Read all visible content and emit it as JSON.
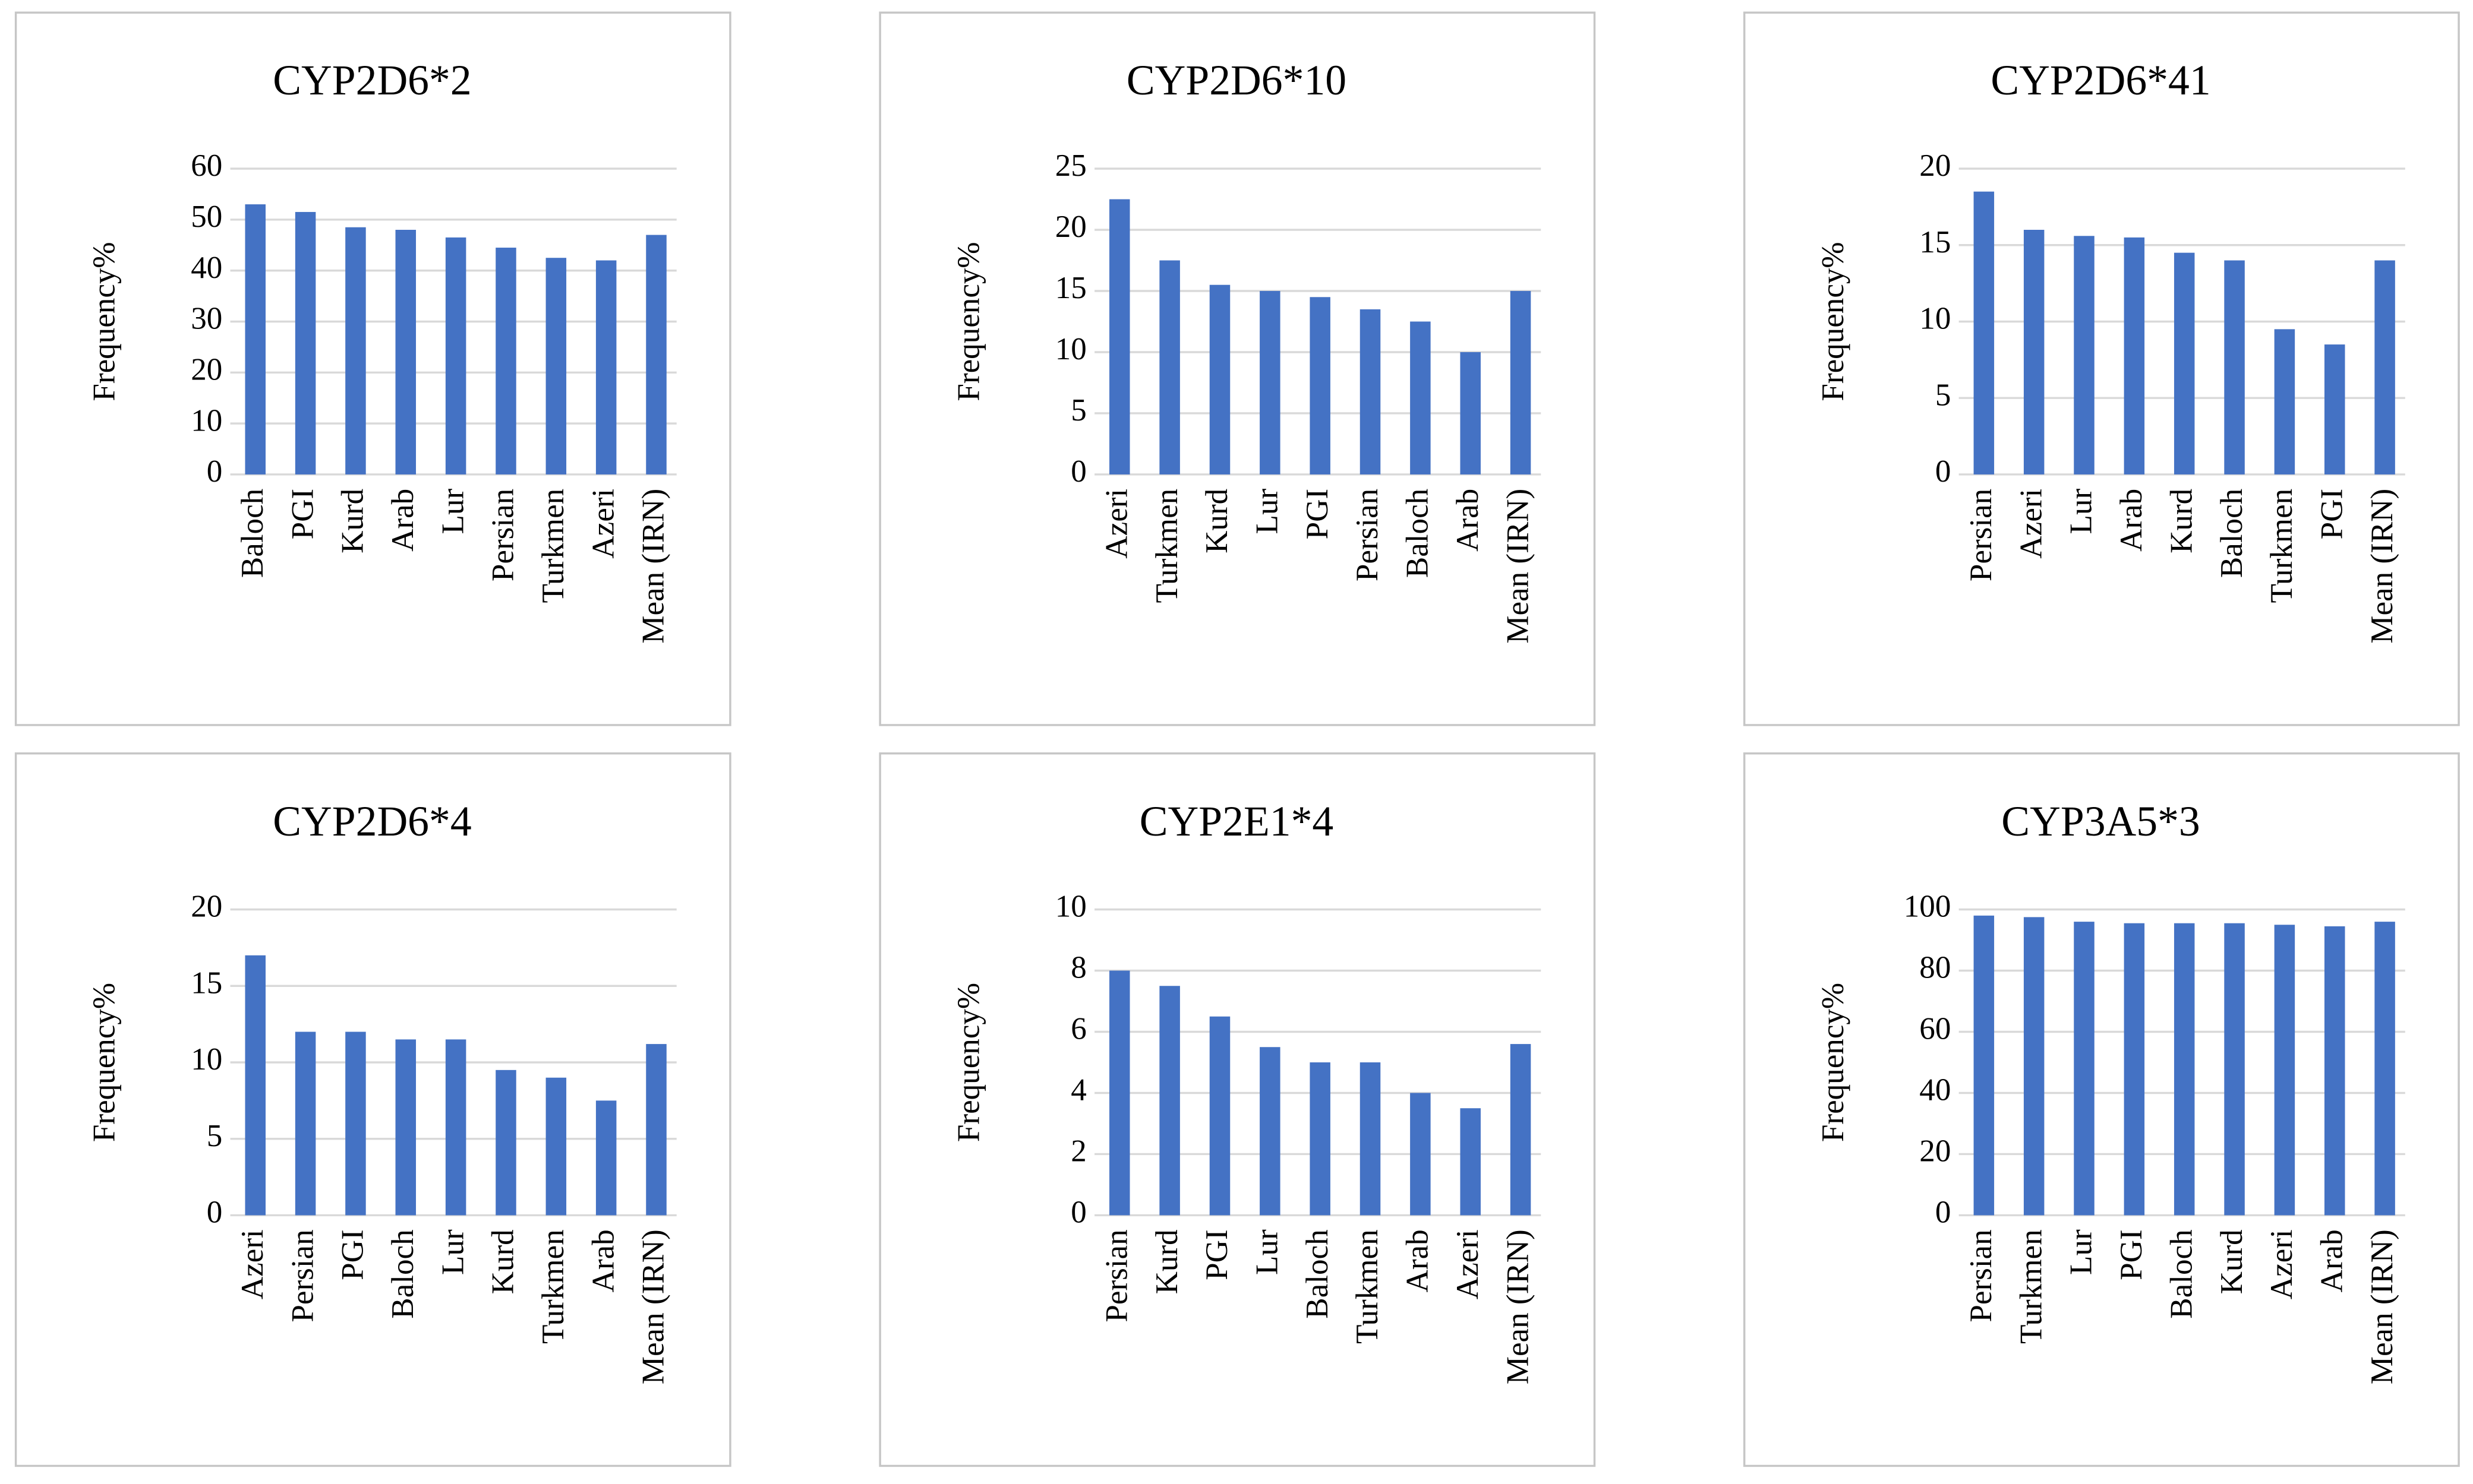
{
  "chart_data": [
    {
      "type": "bar",
      "title": "CYP2D6*2",
      "y_label": "Frequency%",
      "categories": [
        "Baloch",
        "PGI",
        "Kurd",
        "Arab",
        "Lur",
        "Persian",
        "Turkmen",
        "Azeri",
        "Mean (IRN)"
      ],
      "values": [
        53,
        51.5,
        48.5,
        48,
        46.5,
        44.5,
        42.5,
        42,
        47
      ],
      "color": "#4472c4",
      "ylim": [
        0,
        60
      ],
      "yticks": [
        0,
        10,
        20,
        30,
        40,
        50,
        60
      ],
      "grid": true
    },
    {
      "type": "bar",
      "title": "CYP2D6*10",
      "y_label": "Frequency%",
      "categories": [
        "Azeri",
        "Turkmen",
        "Kurd",
        "Lur",
        "PGI",
        "Persian",
        "Baloch",
        "Arab",
        "Mean (IRN)"
      ],
      "values": [
        22.5,
        17.5,
        15.5,
        15,
        14.5,
        13.5,
        12.5,
        10,
        15
      ],
      "color": "#4472c4",
      "ylim": [
        0,
        25
      ],
      "yticks": [
        0,
        5,
        10,
        15,
        20,
        25
      ],
      "grid": true
    },
    {
      "type": "bar",
      "title": "CYP2D6*41",
      "y_label": "Frequency%",
      "categories": [
        "Persian",
        "Azeri",
        "Lur",
        "Arab",
        "Kurd",
        "Baloch",
        "Turkmen",
        "PGI",
        "Mean (IRN)"
      ],
      "values": [
        18.5,
        16,
        15.6,
        15.5,
        14.5,
        14,
        9.5,
        8.5,
        14
      ],
      "color": "#4472c4",
      "ylim": [
        0,
        20
      ],
      "yticks": [
        0,
        5,
        10,
        15,
        20
      ],
      "grid": true
    },
    {
      "type": "bar",
      "title": "CYP2D6*4",
      "y_label": "Frequency%",
      "categories": [
        "Azeri",
        "Persian",
        "PGI",
        "Baloch",
        "Lur",
        "Kurd",
        "Turkmen",
        "Arab",
        "Mean (IRN)"
      ],
      "values": [
        17,
        12,
        12,
        11.5,
        11.5,
        9.5,
        9,
        7.5,
        11.2
      ],
      "color": "#4472c4",
      "ylim": [
        0,
        20
      ],
      "yticks": [
        0,
        5,
        10,
        15,
        20
      ],
      "grid": true
    },
    {
      "type": "bar",
      "title": "CYP2E1*4",
      "y_label": "Frequency%",
      "categories": [
        "Persian",
        "Kurd",
        "PGI",
        "Lur",
        "Baloch",
        "Turkmen",
        "Arab",
        "Azeri",
        "Mean (IRN)"
      ],
      "values": [
        8,
        7.5,
        6.5,
        5.5,
        5,
        5,
        4,
        3.5,
        5.6
      ],
      "color": "#4472c4",
      "ylim": [
        0,
        10
      ],
      "yticks": [
        0,
        2,
        4,
        6,
        8,
        10
      ],
      "grid": true
    },
    {
      "type": "bar",
      "title": "CYP3A5*3",
      "y_label": "Frequency%",
      "categories": [
        "Persian",
        "Turkmen",
        "Lur",
        "PGI",
        "Baloch",
        "Kurd",
        "Azeri",
        "Arab",
        "Mean (IRN)"
      ],
      "values": [
        98,
        97.5,
        96,
        95.5,
        95.5,
        95.5,
        95,
        94.5,
        96
      ],
      "color": "#4472c4",
      "ylim": [
        0,
        100
      ],
      "yticks": [
        0,
        20,
        40,
        60,
        80,
        100
      ],
      "grid": true
    }
  ]
}
